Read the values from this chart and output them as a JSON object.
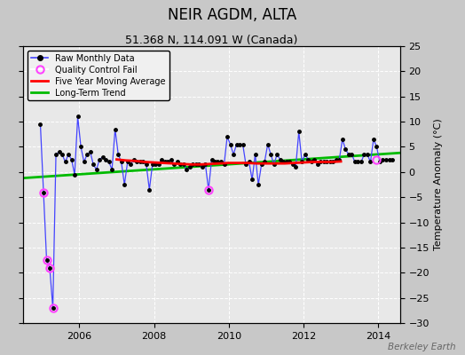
{
  "title": "NEIR AGDM, ALTA",
  "subtitle": "51.368 N, 114.091 W (Canada)",
  "ylabel": "Temperature Anomaly (°C)",
  "watermark": "Berkeley Earth",
  "xlim": [
    2004.5,
    2014.58
  ],
  "ylim": [
    -30,
    25
  ],
  "yticks": [
    -30,
    -25,
    -20,
    -15,
    -10,
    -5,
    0,
    5,
    10,
    15,
    20,
    25
  ],
  "xticks": [
    2006,
    2008,
    2010,
    2012,
    2014
  ],
  "bg_color": "#e8e8e8",
  "grid_color": "#ffffff",
  "raw_x": [
    2004.958,
    2005.042,
    2005.125,
    2005.208,
    2005.292,
    2005.375,
    2005.458,
    2005.542,
    2005.625,
    2005.708,
    2005.792,
    2005.875,
    2005.958,
    2006.042,
    2006.125,
    2006.208,
    2006.292,
    2006.375,
    2006.458,
    2006.542,
    2006.625,
    2006.708,
    2006.792,
    2006.875,
    2006.958,
    2007.042,
    2007.125,
    2007.208,
    2007.292,
    2007.375,
    2007.458,
    2007.542,
    2007.625,
    2007.708,
    2007.792,
    2007.875,
    2007.958,
    2008.042,
    2008.125,
    2008.208,
    2008.292,
    2008.375,
    2008.458,
    2008.542,
    2008.625,
    2008.708,
    2008.792,
    2008.875,
    2008.958,
    2009.042,
    2009.125,
    2009.208,
    2009.292,
    2009.375,
    2009.458,
    2009.542,
    2009.625,
    2009.708,
    2009.792,
    2009.875,
    2009.958,
    2010.042,
    2010.125,
    2010.208,
    2010.292,
    2010.375,
    2010.458,
    2010.542,
    2010.625,
    2010.708,
    2010.792,
    2010.875,
    2010.958,
    2011.042,
    2011.125,
    2011.208,
    2011.292,
    2011.375,
    2011.458,
    2011.542,
    2011.625,
    2011.708,
    2011.792,
    2011.875,
    2011.958,
    2012.042,
    2012.125,
    2012.208,
    2012.292,
    2012.375,
    2012.458,
    2012.542,
    2012.625,
    2012.708,
    2012.792,
    2012.875,
    2012.958,
    2013.042,
    2013.125,
    2013.208,
    2013.292,
    2013.375,
    2013.458,
    2013.542,
    2013.625,
    2013.708,
    2013.792,
    2013.875,
    2013.958,
    2014.042,
    2014.125,
    2014.208,
    2014.292,
    2014.375
  ],
  "raw_y": [
    9.5,
    -4.0,
    -17.5,
    -19.0,
    -27.0,
    3.5,
    4.0,
    3.5,
    2.0,
    3.5,
    2.5,
    -0.5,
    11.0,
    5.0,
    2.0,
    3.5,
    4.0,
    1.5,
    0.5,
    2.5,
    3.0,
    2.5,
    2.0,
    0.5,
    8.5,
    3.5,
    2.0,
    -2.5,
    2.0,
    1.5,
    2.5,
    2.0,
    2.0,
    2.0,
    1.5,
    -3.5,
    1.5,
    1.5,
    1.5,
    2.5,
    2.0,
    2.0,
    2.5,
    1.5,
    2.0,
    1.5,
    1.5,
    0.5,
    1.0,
    1.5,
    1.5,
    1.5,
    1.0,
    1.5,
    -3.5,
    2.5,
    2.0,
    2.0,
    2.0,
    1.5,
    7.0,
    5.5,
    3.5,
    5.5,
    5.5,
    5.5,
    1.5,
    2.0,
    -1.5,
    3.5,
    -2.5,
    1.5,
    2.0,
    5.5,
    3.5,
    1.5,
    3.5,
    2.5,
    2.0,
    2.0,
    2.0,
    1.5,
    1.0,
    8.0,
    2.0,
    3.5,
    2.5,
    2.0,
    2.5,
    1.5,
    2.0,
    2.0,
    2.0,
    2.0,
    2.0,
    2.5,
    2.5,
    6.5,
    4.5,
    3.5,
    3.5,
    2.0,
    2.0,
    2.0,
    3.5,
    3.5,
    2.0,
    6.5,
    5.0,
    2.0,
    2.5,
    2.5,
    2.5,
    2.5
  ],
  "qc_fail_x": [
    2005.042,
    2005.125,
    2005.208,
    2005.292,
    2009.458,
    2013.958
  ],
  "qc_fail_y": [
    -4.0,
    -17.5,
    -19.0,
    -27.0,
    -3.5,
    2.5
  ],
  "moving_avg_x": [
    2007.0,
    2007.25,
    2007.5,
    2007.75,
    2008.0,
    2008.25,
    2008.5,
    2008.75,
    2009.0,
    2009.25,
    2009.5,
    2009.75,
    2010.0,
    2010.25,
    2010.5,
    2010.75,
    2011.0,
    2011.25,
    2011.5,
    2011.75,
    2012.0,
    2012.25,
    2012.5,
    2012.75,
    2013.0
  ],
  "moving_avg_y": [
    2.5,
    2.3,
    2.2,
    2.0,
    1.9,
    1.8,
    1.7,
    1.6,
    1.5,
    1.5,
    1.6,
    1.7,
    1.8,
    1.8,
    1.8,
    1.7,
    1.7,
    1.7,
    1.7,
    1.8,
    1.9,
    2.0,
    2.0,
    2.0,
    2.1
  ],
  "trend_x": [
    2004.5,
    2014.58
  ],
  "trend_y": [
    -1.2,
    3.8
  ],
  "raw_color": "#4444ff",
  "dot_color": "#000000",
  "qc_color": "#ff44ff",
  "moving_avg_color": "#ff0000",
  "trend_color": "#00bb00",
  "legend_bg": "#f0f0f0",
  "fig_bg": "#c8c8c8",
  "title_fontsize": 12,
  "subtitle_fontsize": 9,
  "tick_fontsize": 8,
  "ylabel_fontsize": 8
}
